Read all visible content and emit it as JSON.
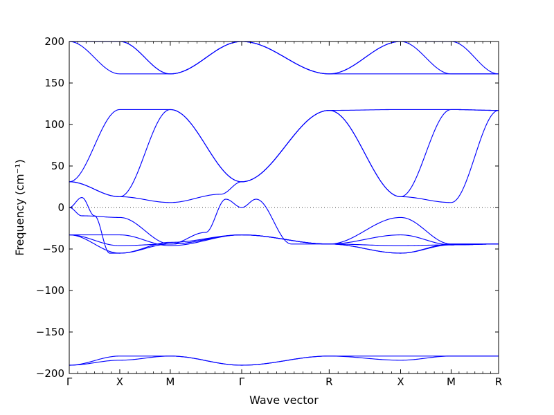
{
  "chart_data": {
    "type": "line",
    "xlabel": "Wave vector",
    "ylabel": "Frequency (cm⁻¹)",
    "ylim": [
      -200,
      200
    ],
    "yticks": [
      -200,
      -150,
      -100,
      -50,
      0,
      50,
      100,
      150,
      200
    ],
    "ytick_labels": [
      "−200",
      "−150",
      "−100",
      "−50",
      "0",
      "50",
      "100",
      "150",
      "200"
    ],
    "xlim": [
      0,
      8.5
    ],
    "high_symmetry_points": [
      {
        "label": "Γ",
        "x": 0
      },
      {
        "label": "X",
        "x": 1
      },
      {
        "label": "M",
        "x": 2
      },
      {
        "label": "Γ",
        "x": 3.414
      },
      {
        "label": "R",
        "x": 5.146
      },
      {
        "label": "X",
        "x": 6.56
      },
      {
        "label": "M",
        "x": 7.56
      },
      {
        "label": "R",
        "x": 8.5
      }
    ],
    "zero_line": true,
    "line_color": "#0000ff",
    "bands": [
      {
        "x": [
          0,
          1,
          2,
          3.414,
          5.146,
          6.56,
          7.56,
          8.5
        ],
        "y": [
          -190,
          -184,
          -179,
          -190,
          -179,
          -184,
          -179,
          -179
        ]
      },
      {
        "x": [
          0,
          1,
          2,
          3.414,
          5.146,
          6.56,
          7.56,
          8.5
        ],
        "y": [
          -190,
          -179,
          -179,
          -190,
          -179,
          -179,
          -179,
          -179
        ]
      },
      {
        "x": [
          0,
          1,
          2,
          3.414,
          5.146,
          6.56,
          7.56,
          8.5
        ],
        "y": [
          -33,
          -46,
          -44,
          -33,
          -44,
          -46,
          -45,
          -44
        ]
      },
      {
        "x": [
          0,
          1,
          2,
          3.414,
          5.146,
          6.56,
          7.56,
          8.5
        ],
        "y": [
          -33,
          -55,
          -44,
          -33,
          -44,
          -55,
          -45,
          -44
        ]
      },
      {
        "x": [
          0,
          1,
          2,
          3.414,
          5.146,
          6.56,
          7.56,
          8.5
        ],
        "y": [
          -33,
          -33,
          -46,
          -33,
          -44,
          -33,
          -45,
          -44
        ]
      },
      {
        "x": [
          0,
          0.25,
          1,
          2,
          2.7,
          3.1,
          3.414,
          3.7,
          4.4,
          5.146,
          6.56,
          7.56,
          8.5
        ],
        "y": [
          0,
          -10,
          -12,
          -44,
          -30,
          10,
          0,
          10,
          -44,
          -44,
          -12,
          -44,
          -44
        ]
      },
      {
        "x": [
          0,
          0.25,
          0.5,
          0.8,
          1,
          2,
          3.414,
          5.146,
          6.56,
          7.56,
          8.5
        ],
        "y": [
          0,
          12,
          -10,
          -55,
          -55,
          -42,
          -33,
          -44,
          -55,
          -44,
          -44
        ]
      },
      {
        "x": [
          0,
          1,
          2,
          3.0,
          3.414,
          5.146,
          6.56,
          7.56,
          8.5
        ],
        "y": [
          31,
          13,
          6,
          16,
          31,
          117,
          13,
          6,
          117
        ]
      },
      {
        "x": [
          0,
          1,
          2,
          3.414,
          5.146,
          6.56,
          7.56,
          8.5
        ],
        "y": [
          31,
          118,
          118,
          31,
          117,
          118,
          118,
          117
        ]
      },
      {
        "x": [
          0,
          1,
          2,
          3.414,
          5.146,
          6.56,
          7.56,
          8.5
        ],
        "y": [
          31,
          13,
          118,
          31,
          117,
          13,
          118,
          117
        ]
      },
      {
        "x": [
          0,
          1,
          2,
          3.414,
          5.146,
          6.56,
          7.56,
          8.5
        ],
        "y": [
          200,
          161,
          161,
          200,
          161,
          161,
          161,
          161
        ]
      },
      {
        "x": [
          0,
          1,
          2,
          3.414,
          5.146,
          6.56,
          7.56,
          8.5
        ],
        "y": [
          200,
          200,
          161,
          200,
          161,
          200,
          200,
          161
        ]
      },
      {
        "x": [
          0,
          1,
          2,
          3.414,
          5.146,
          6.56,
          7.56,
          8.5
        ],
        "y": [
          200,
          200,
          161,
          200,
          161,
          200,
          161,
          161
        ]
      }
    ]
  }
}
